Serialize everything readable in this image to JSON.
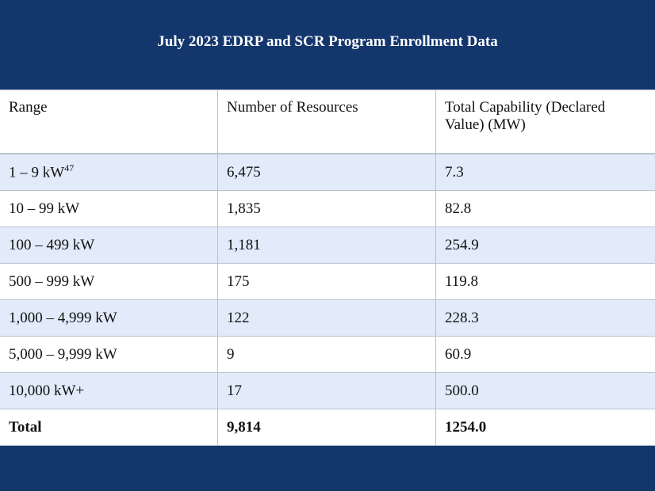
{
  "title": "July 2023 EDRP and SCR Program Enrollment Data",
  "headers": [
    "Range",
    "Number of Resources",
    "Total Capability (Declared Value) (MW)"
  ],
  "rows": [
    {
      "range": "1 – 9 kW",
      "footnote": "47",
      "resources": "6,475",
      "capability": "7.3"
    },
    {
      "range": "10 – 99 kW",
      "resources": "1,835",
      "capability": "82.8"
    },
    {
      "range": "100 – 499 kW",
      "resources": "1,181",
      "capability": "254.9"
    },
    {
      "range": "500 – 999 kW",
      "resources": "175",
      "capability": "119.8"
    },
    {
      "range": "1,000 – 4,999 kW",
      "resources": "122",
      "capability": "228.3"
    },
    {
      "range": "5,000 – 9,999 kW",
      "resources": "9",
      "capability": "60.9"
    },
    {
      "range": "10,000 kW+",
      "resources": "17",
      "capability": "500.0"
    }
  ],
  "total": {
    "label": "Total",
    "resources": "9,814",
    "capability": "1254.0"
  },
  "colors": {
    "background": "#13366d",
    "alt_row": "#e1ebf9",
    "border": "#b9c1cd"
  }
}
